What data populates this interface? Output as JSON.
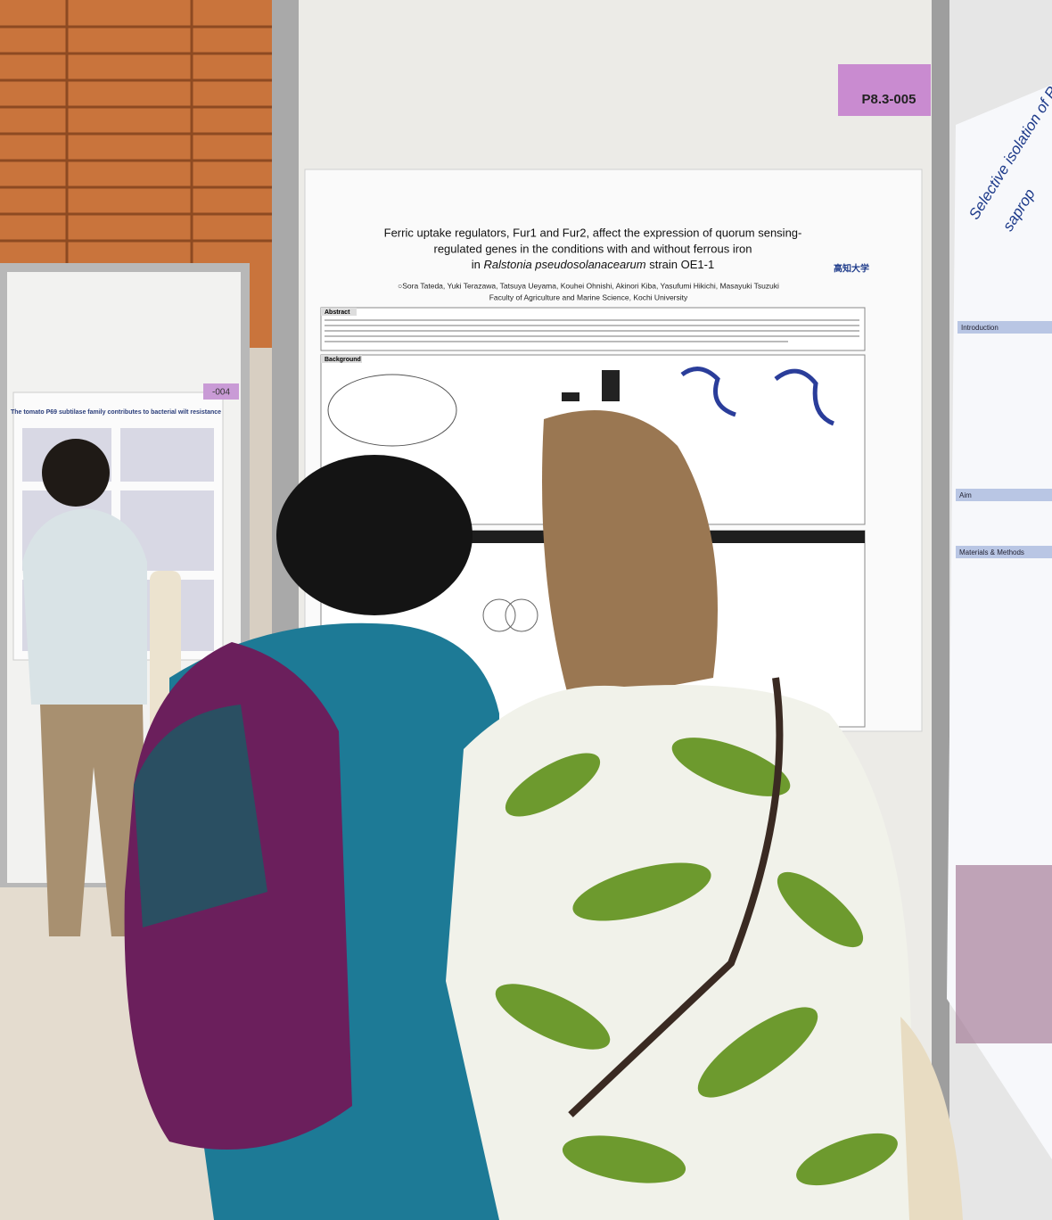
{
  "posters": [
    {
      "tag": "P8.3-005",
      "title_lines": [
        "Ferric uptake regulators, Fur1 and Fur2, affect the expression of quorum sensing-",
        "regulated genes in the conditions with and without ferrous iron"
      ],
      "title_last": {
        "before": "in ",
        "species": "Ralstonia pseudosolanacearum",
        "after": " strain OE1-1"
      },
      "authors": "○Sora Tateda, Yuki Terazawa, Tatsuya Ueyama, Kouhei Ohnishi, Akinori Kiba, Yasufumi Hikichi, Masayuki Tsuzuki",
      "affiliation": "Faculty of Agriculture and Marine Science, Kochi University",
      "logo": "高知大学",
      "sections": [
        "Abstract",
        "Background"
      ]
    },
    {
      "tag": "-004",
      "title": "The tomato P69 subtilase family contributes to bacterial wilt resistance"
    },
    {
      "title_lines": [
        "Selective isolation of Ralsto",
        "saprop"
      ],
      "sections": [
        "Introduction",
        "Aim",
        "Materials & Methods"
      ]
    }
  ]
}
